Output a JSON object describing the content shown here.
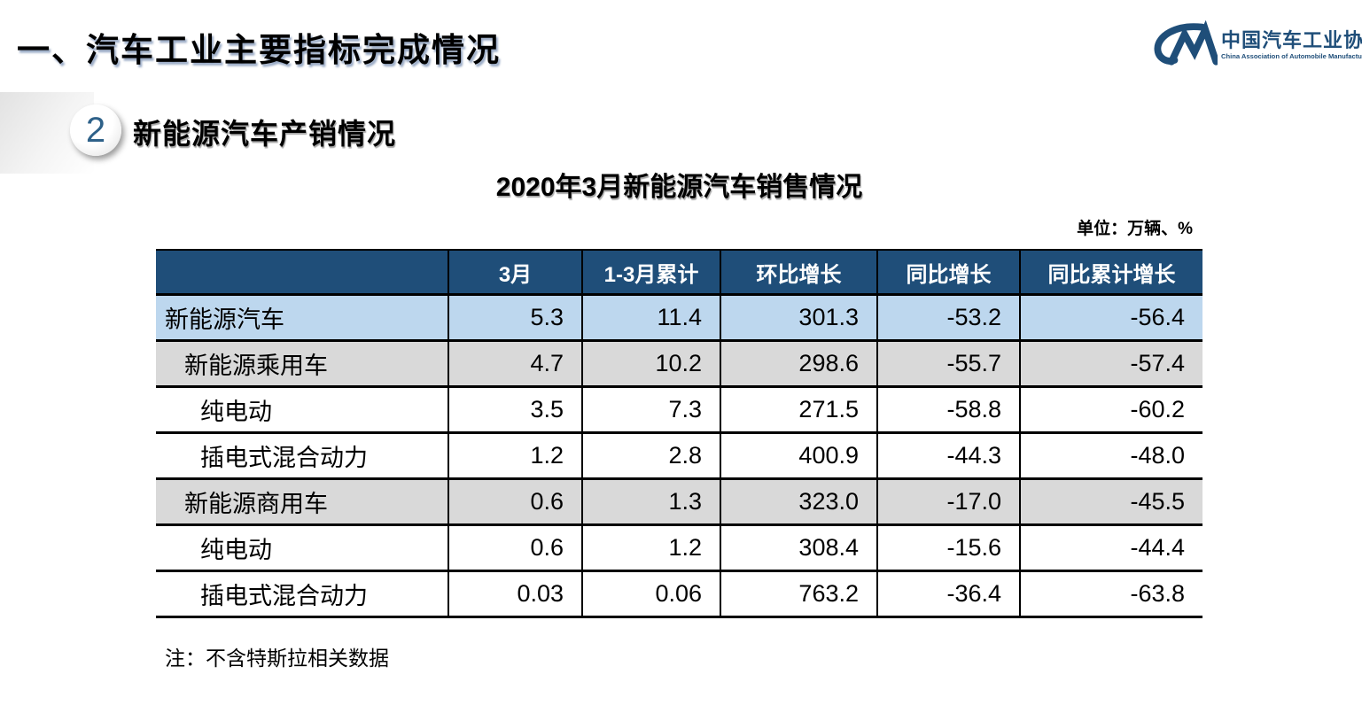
{
  "slide": {
    "main_title": "一、汽车工业主要指标完成情况",
    "section_badge": "2",
    "section_heading": "新能源汽车产销情况",
    "table_title": "2020年3月新能源汽车销售情况",
    "unit_label": "单位：万辆、%",
    "footnote": "注：不含特斯拉相关数据"
  },
  "logo": {
    "org_cn": "中国汽车工业协会",
    "org_en": "China Association of Automobile Manufacturers",
    "mark": "cam-cm-monogram"
  },
  "colors": {
    "table_header_bg": "#1F4E79",
    "row_highlight_blue": "#BDD7EE",
    "row_gray": "#D9D9D9",
    "row_white": "#FFFFFF",
    "logo_navy": "#1F4E79",
    "badge_number_blue": "#2E6189"
  },
  "chart_data": {
    "type": "table",
    "title": "2020年3月新能源汽车销售情况",
    "unit": "万辆、%",
    "columns": [
      "",
      "3月",
      "1-3月累计",
      "环比增长",
      "同比增长",
      "同比累计增长"
    ],
    "rows": [
      {
        "label": "新能源汽车",
        "indent": 0,
        "row_style": "blue",
        "values": [
          "5.3",
          "11.4",
          "301.3",
          "-53.2",
          "-56.4"
        ]
      },
      {
        "label": "新能源乘用车",
        "indent": 1,
        "row_style": "gray",
        "values": [
          "4.7",
          "10.2",
          "298.6",
          "-55.7",
          "-57.4"
        ]
      },
      {
        "label": "纯电动",
        "indent": 2,
        "row_style": "white",
        "values": [
          "3.5",
          "7.3",
          "271.5",
          "-58.8",
          "-60.2"
        ]
      },
      {
        "label": "插电式混合动力",
        "indent": 2,
        "row_style": "white",
        "values": [
          "1.2",
          "2.8",
          "400.9",
          "-44.3",
          "-48.0"
        ]
      },
      {
        "label": "新能源商用车",
        "indent": 1,
        "row_style": "gray",
        "values": [
          "0.6",
          "1.3",
          "323.0",
          "-17.0",
          "-45.5"
        ]
      },
      {
        "label": "纯电动",
        "indent": 2,
        "row_style": "white",
        "values": [
          "0.6",
          "1.2",
          "308.4",
          "-15.6",
          "-44.4"
        ]
      },
      {
        "label": "插电式混合动力",
        "indent": 2,
        "row_style": "white",
        "values": [
          "0.03",
          "0.06",
          "763.2",
          "-36.4",
          "-63.8"
        ]
      }
    ]
  }
}
